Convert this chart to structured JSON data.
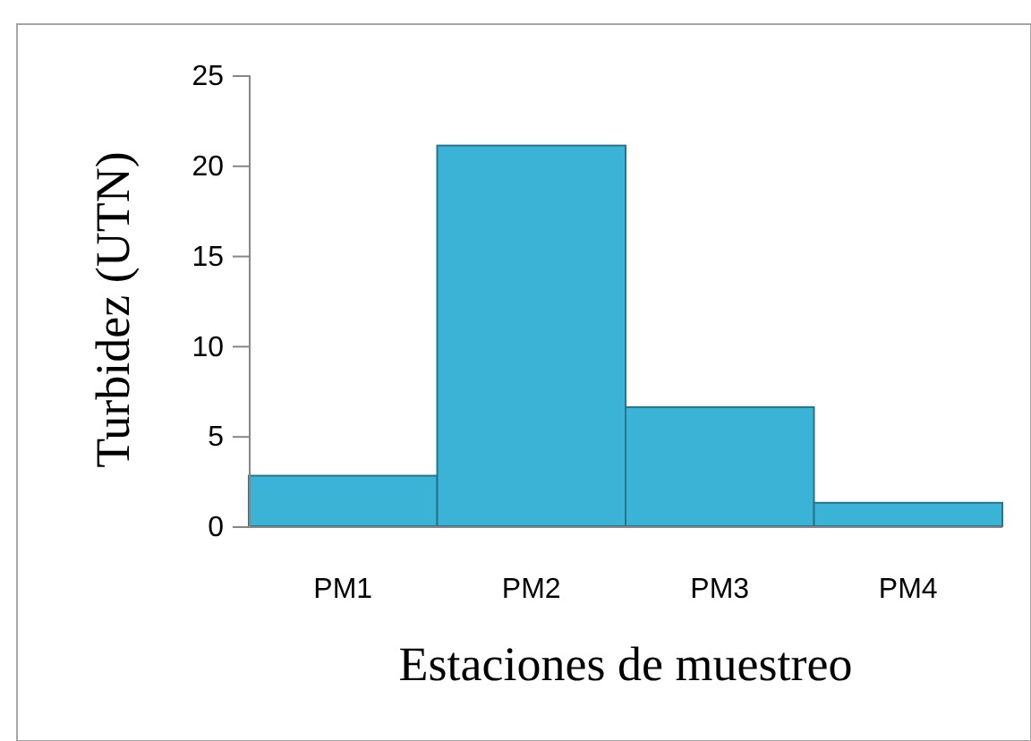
{
  "chart_data": {
    "type": "bar",
    "xlabel": "Estaciones de muestreo",
    "ylabel": "Turbidez (UTN)",
    "categories": [
      "PM1",
      "PM2",
      "PM3",
      "PM4"
    ],
    "values": [
      2.8,
      21.1,
      6.6,
      1.3
    ],
    "color": "#3bb3d6",
    "ylim": [
      0,
      25
    ],
    "yticks": [
      0,
      5,
      10,
      15,
      20,
      25
    ]
  }
}
